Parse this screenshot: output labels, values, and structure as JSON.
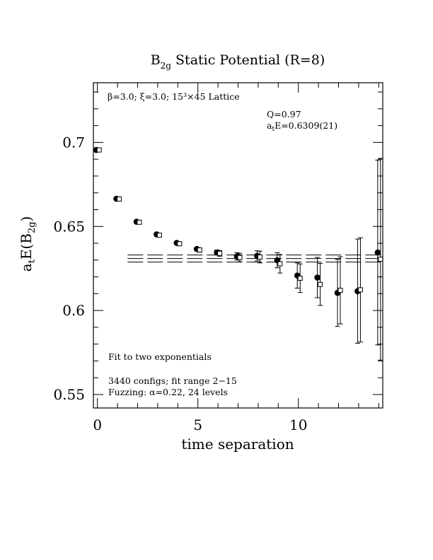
{
  "chart_data": {
    "type": "scatter",
    "title": "B2g Static Potential (R=8)",
    "title_main": "B",
    "title_sub": "2g",
    "title_rest": " Static Potential (R=8)",
    "xlabel": "time separation",
    "ylabel": "a_t E(B_2g)",
    "ylabel_parts": {
      "a": "a",
      "t": "t",
      "main": "E(B",
      "sub": "2g",
      "close": ")"
    },
    "xlim": [
      -0.2,
      14.2
    ],
    "ylim": [
      0.542,
      0.7355
    ],
    "x_ticks": [
      0,
      5,
      10
    ],
    "x_tick_labels": [
      "0",
      "5",
      "10"
    ],
    "y_ticks": [
      0.55,
      0.6,
      0.65,
      0.7
    ],
    "y_tick_labels": [
      "0.55",
      "0.6",
      "0.65",
      "0.7"
    ],
    "annotations": {
      "lattice_label": "β=3.0; ξ=3.0; 15³×45 Lattice",
      "q_value": "Q=0.97",
      "energy_a": "a",
      "energy_sub": "t",
      "energy_rest": "E=0.6309(21)",
      "fit_type": "Fit to two exponentials",
      "configs": "3440 configs; fit range 2−15",
      "fuzzing": "Fuzzing: α=0.22, 24 levels"
    },
    "fit": {
      "value": 0.6309,
      "error": 0.0021,
      "x_start": 1.5,
      "x_end": 14.2
    },
    "series": [
      {
        "marker": "filled-circle",
        "x": [
          0,
          1,
          2,
          3,
          4,
          5,
          6,
          7,
          8,
          9,
          10,
          11,
          12,
          13,
          14
        ],
        "y": [
          0.6955,
          0.6665,
          0.6528,
          0.6453,
          0.6402,
          0.6366,
          0.6345,
          0.6322,
          0.6325,
          0.6299,
          0.6208,
          0.6196,
          0.6105,
          0.6115,
          0.6345
        ],
        "err": [
          0.0005,
          0.0006,
          0.0007,
          0.0008,
          0.0009,
          0.0012,
          0.0015,
          0.0022,
          0.003,
          0.0045,
          0.0075,
          0.012,
          0.02,
          0.031,
          0.055
        ]
      },
      {
        "marker": "open-square",
        "x": [
          0,
          1,
          2,
          3,
          4,
          5,
          6,
          7,
          8,
          9,
          10,
          11,
          12,
          13,
          14
        ],
        "y": [
          0.6955,
          0.6663,
          0.6525,
          0.6448,
          0.6397,
          0.636,
          0.634,
          0.6315,
          0.6318,
          0.6278,
          0.6192,
          0.6155,
          0.612,
          0.6123,
          0.6305
        ],
        "err": [
          0.0005,
          0.0006,
          0.0007,
          0.0008,
          0.001,
          0.0013,
          0.0017,
          0.0025,
          0.0035,
          0.0055,
          0.0085,
          0.0125,
          0.02,
          0.031,
          0.06
        ]
      }
    ]
  }
}
